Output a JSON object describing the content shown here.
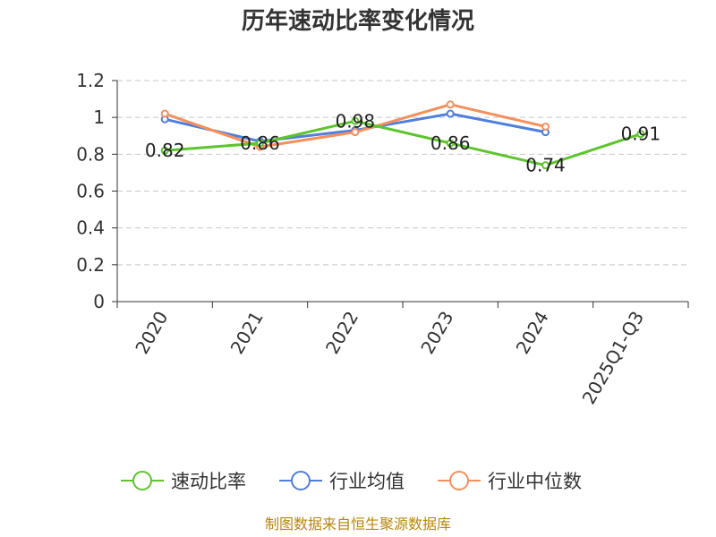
{
  "chart_data": {
    "type": "line",
    "title": "历年速动比率变化情况",
    "categories": [
      "2020",
      "2021",
      "2022",
      "2023",
      "2024",
      "2025Q1-Q3"
    ],
    "y_ticks": [
      "0",
      "0.2",
      "0.4",
      "0.6",
      "0.8",
      "1",
      "1.2"
    ],
    "ylim": [
      0,
      1.2
    ],
    "grid": true,
    "legend_position": "bottom",
    "series": [
      {
        "name": "速动比率",
        "color": "#5dc42d",
        "values": [
          0.82,
          0.86,
          0.98,
          0.86,
          0.74,
          0.91
        ],
        "labels": [
          "0.82",
          "0.86",
          "0.98",
          "0.86",
          "0.74",
          "0.91"
        ]
      },
      {
        "name": "行业均值",
        "color": "#4f7fdc",
        "values": [
          0.99,
          0.87,
          0.93,
          1.02,
          0.92,
          null
        ]
      },
      {
        "name": "行业中位数",
        "color": "#f58f5c",
        "values": [
          1.02,
          0.84,
          0.92,
          1.07,
          0.95,
          null
        ]
      }
    ]
  },
  "source": "制图数据来自恒生聚源数据库"
}
